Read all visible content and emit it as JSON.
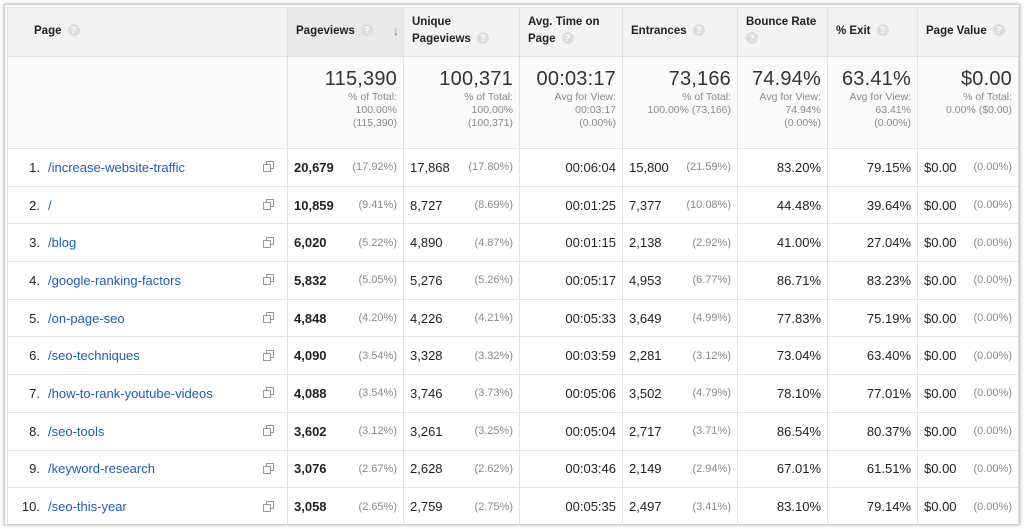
{
  "headers": {
    "page": "Page",
    "pageviews": "Pageviews",
    "unique_pageviews_l1": "Unique",
    "unique_pageviews_l2": "Pageviews",
    "avg_time_l1": "Avg. Time on",
    "avg_time_l2": "Page",
    "entrances": "Entrances",
    "bounce_rate": "Bounce Rate",
    "exit": "% Exit",
    "page_value": "Page Value",
    "help_glyph": "?",
    "sort_glyph": "↓"
  },
  "totals": {
    "pageviews": {
      "main": "115,390",
      "l1": "% of Total:",
      "l2": "100.00%",
      "l3": "(115,390)"
    },
    "unique_pageviews": {
      "main": "100,371",
      "l1": "% of Total:",
      "l2": "100.00%",
      "l3": "(100,371)"
    },
    "avg_time": {
      "main": "00:03:17",
      "l1": "Avg for View:",
      "l2": "00:03:17",
      "l3": "(0.00%)"
    },
    "entrances": {
      "main": "73,166",
      "l1": "% of Total:",
      "l2": "100.00% (73,166)"
    },
    "bounce_rate": {
      "main": "74.94%",
      "l1": "Avg for View:",
      "l2": "74.94%",
      "l3": "(0.00%)"
    },
    "exit": {
      "main": "63.41%",
      "l1": "Avg for View:",
      "l2": "63.41%",
      "l3": "(0.00%)"
    },
    "page_value": {
      "main": "$0.00",
      "l1": "% of Total:",
      "l2": "0.00% ($0.00)"
    }
  },
  "rows": [
    {
      "idx": "1.",
      "page": "/increase-website-traffic",
      "pv": "20,679",
      "pv_pct": "(17.92%)",
      "upv": "17,868",
      "upv_pct": "(17.80%)",
      "avg": "00:06:04",
      "ent": "15,800",
      "ent_pct": "(21.59%)",
      "br": "83.20%",
      "exit": "79.15%",
      "val": "$0.00",
      "val_pct": "(0.00%)"
    },
    {
      "idx": "2.",
      "page": "/",
      "pv": "10,859",
      "pv_pct": "(9.41%)",
      "upv": "8,727",
      "upv_pct": "(8.69%)",
      "avg": "00:01:25",
      "ent": "7,377",
      "ent_pct": "(10.08%)",
      "br": "44.48%",
      "exit": "39.64%",
      "val": "$0.00",
      "val_pct": "(0.00%)"
    },
    {
      "idx": "3.",
      "page": "/blog",
      "pv": "6,020",
      "pv_pct": "(5.22%)",
      "upv": "4,890",
      "upv_pct": "(4.87%)",
      "avg": "00:01:15",
      "ent": "2,138",
      "ent_pct": "(2.92%)",
      "br": "41.00%",
      "exit": "27.04%",
      "val": "$0.00",
      "val_pct": "(0.00%)"
    },
    {
      "idx": "4.",
      "page": "/google-ranking-factors",
      "pv": "5,832",
      "pv_pct": "(5.05%)",
      "upv": "5,276",
      "upv_pct": "(5.26%)",
      "avg": "00:05:17",
      "ent": "4,953",
      "ent_pct": "(6.77%)",
      "br": "86.71%",
      "exit": "83.23%",
      "val": "$0.00",
      "val_pct": "(0.00%)"
    },
    {
      "idx": "5.",
      "page": "/on-page-seo",
      "pv": "4,848",
      "pv_pct": "(4.20%)",
      "upv": "4,226",
      "upv_pct": "(4.21%)",
      "avg": "00:05:33",
      "ent": "3,649",
      "ent_pct": "(4.99%)",
      "br": "77.83%",
      "exit": "75.19%",
      "val": "$0.00",
      "val_pct": "(0.00%)"
    },
    {
      "idx": "6.",
      "page": "/seo-techniques",
      "pv": "4,090",
      "pv_pct": "(3.54%)",
      "upv": "3,328",
      "upv_pct": "(3.32%)",
      "avg": "00:03:59",
      "ent": "2,281",
      "ent_pct": "(3.12%)",
      "br": "73.04%",
      "exit": "63.40%",
      "val": "$0.00",
      "val_pct": "(0.00%)"
    },
    {
      "idx": "7.",
      "page": "/how-to-rank-youtube-videos",
      "pv": "4,088",
      "pv_pct": "(3.54%)",
      "upv": "3,746",
      "upv_pct": "(3.73%)",
      "avg": "00:05:06",
      "ent": "3,502",
      "ent_pct": "(4.79%)",
      "br": "78.10%",
      "exit": "77.01%",
      "val": "$0.00",
      "val_pct": "(0.00%)"
    },
    {
      "idx": "8.",
      "page": "/seo-tools",
      "pv": "3,602",
      "pv_pct": "(3.12%)",
      "upv": "3,261",
      "upv_pct": "(3.25%)",
      "avg": "00:05:04",
      "ent": "2,717",
      "ent_pct": "(3.71%)",
      "br": "86.54%",
      "exit": "80.37%",
      "val": "$0.00",
      "val_pct": "(0.00%)"
    },
    {
      "idx": "9.",
      "page": "/keyword-research",
      "pv": "3,076",
      "pv_pct": "(2.67%)",
      "upv": "2,628",
      "upv_pct": "(2.62%)",
      "avg": "00:03:46",
      "ent": "2,149",
      "ent_pct": "(2.94%)",
      "br": "67.01%",
      "exit": "61.51%",
      "val": "$0.00",
      "val_pct": "(0.00%)"
    },
    {
      "idx": "10.",
      "page": "/seo-this-year",
      "pv": "3,058",
      "pv_pct": "(2.65%)",
      "upv": "2,759",
      "upv_pct": "(2.75%)",
      "avg": "00:05:35",
      "ent": "2,497",
      "ent_pct": "(3.41%)",
      "br": "83.10%",
      "exit": "79.14%",
      "val": "$0.00",
      "val_pct": "(0.00%)"
    }
  ]
}
